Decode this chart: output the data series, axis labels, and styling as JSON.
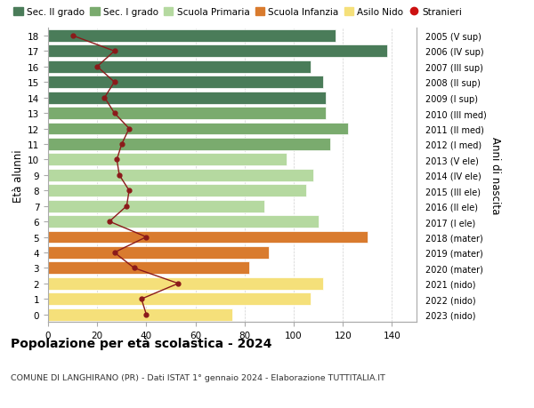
{
  "ages": [
    18,
    17,
    16,
    15,
    14,
    13,
    12,
    11,
    10,
    9,
    8,
    7,
    6,
    5,
    4,
    3,
    2,
    1,
    0
  ],
  "right_labels": [
    "2005 (V sup)",
    "2006 (IV sup)",
    "2007 (III sup)",
    "2008 (II sup)",
    "2009 (I sup)",
    "2010 (III med)",
    "2011 (II med)",
    "2012 (I med)",
    "2013 (V ele)",
    "2014 (IV ele)",
    "2015 (III ele)",
    "2016 (II ele)",
    "2017 (I ele)",
    "2018 (mater)",
    "2019 (mater)",
    "2020 (mater)",
    "2021 (nido)",
    "2022 (nido)",
    "2023 (nido)"
  ],
  "bar_values": [
    117,
    138,
    107,
    112,
    113,
    113,
    122,
    115,
    97,
    108,
    105,
    88,
    110,
    130,
    90,
    82,
    112,
    107,
    75
  ],
  "bar_colors": [
    "#4a7c59",
    "#4a7c59",
    "#4a7c59",
    "#4a7c59",
    "#4a7c59",
    "#7aab6e",
    "#7aab6e",
    "#7aab6e",
    "#b5d9a0",
    "#b5d9a0",
    "#b5d9a0",
    "#b5d9a0",
    "#b5d9a0",
    "#d97b2e",
    "#d97b2e",
    "#d97b2e",
    "#f5e07a",
    "#f5e07a",
    "#f5e07a"
  ],
  "stranieri_values": [
    10,
    27,
    20,
    27,
    23,
    27,
    33,
    30,
    28,
    29,
    33,
    32,
    25,
    40,
    27,
    35,
    53,
    38,
    40
  ],
  "stranieri_color": "#8b1a1a",
  "legend_labels": [
    "Sec. II grado",
    "Sec. I grado",
    "Scuola Primaria",
    "Scuola Infanzia",
    "Asilo Nido",
    "Stranieri"
  ],
  "legend_colors": [
    "#4a7c59",
    "#7aab6e",
    "#b5d9a0",
    "#d97b2e",
    "#f5e07a",
    "#cc1111"
  ],
  "ylabel_left": "Età alunni",
  "ylabel_right": "Anni di nascita",
  "title": "Popolazione per età scolastica - 2024",
  "subtitle": "COMUNE DI LANGHIRANO (PR) - Dati ISTAT 1° gennaio 2024 - Elaborazione TUTTITALIA.IT",
  "xlim": [
    0,
    150
  ],
  "xticks": [
    0,
    20,
    40,
    60,
    80,
    100,
    120,
    140
  ],
  "bg_color": "#ffffff",
  "grid_color": "#cccccc"
}
